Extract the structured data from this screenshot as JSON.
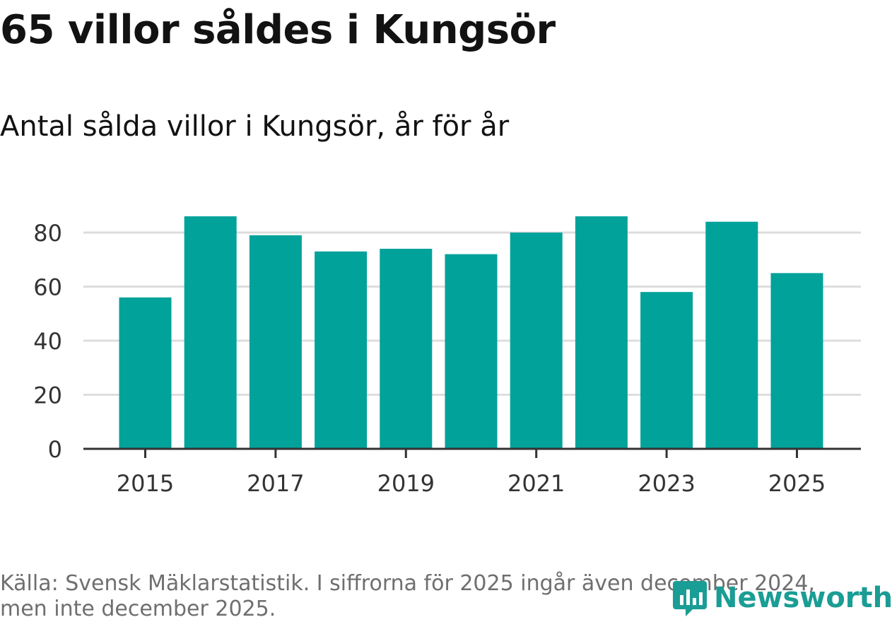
{
  "title": "65 villor såldes i Kungsör",
  "subtitle": "Antal sålda villor i Kungsör, år för år",
  "source": "Källa: Svensk Mäklarstatistik. I siffrorna för 2025 ingår även december 2024, men inte december 2025.",
  "brand": {
    "name": "Newsworthy",
    "color": "#1a9d94",
    "icon": "newsworthy-logo-icon"
  },
  "colors": {
    "bar": "#00a29a",
    "grid": "#dddddd",
    "axis": "#333333",
    "text": "#333333"
  },
  "chart_data": {
    "type": "bar",
    "categories": [
      "2015",
      "2016",
      "2017",
      "2018",
      "2019",
      "2020",
      "2021",
      "2022",
      "2023",
      "2024",
      "2025"
    ],
    "values": [
      56,
      86,
      79,
      73,
      74,
      72,
      80,
      86,
      58,
      84,
      65
    ],
    "xticks": [
      "2015",
      "2017",
      "2019",
      "2021",
      "2023",
      "2025"
    ],
    "yticks": [
      0,
      20,
      40,
      60,
      80
    ],
    "ylim": [
      0,
      90
    ],
    "xlabel": "",
    "ylabel": "",
    "grid": "horizontal"
  }
}
